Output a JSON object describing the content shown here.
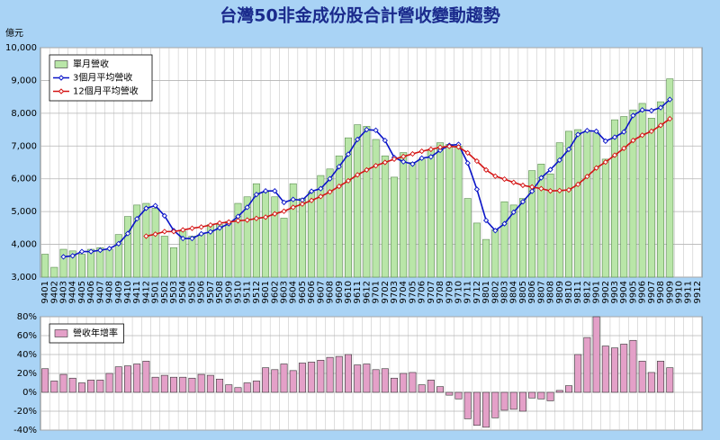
{
  "chart_data": [
    {
      "type": "bar_line",
      "title": "台灣50非金成份股合計營收變動趨勢",
      "y_label": "億元",
      "categories": [
        "9401",
        "9402",
        "9403",
        "9404",
        "9405",
        "9406",
        "9407",
        "9408",
        "9409",
        "9410",
        "9411",
        "9412",
        "9501",
        "9502",
        "9503",
        "9504",
        "9505",
        "9506",
        "9507",
        "9508",
        "9509",
        "9510",
        "9511",
        "9512",
        "9601",
        "9602",
        "9603",
        "9604",
        "9605",
        "9606",
        "9607",
        "9608",
        "9609",
        "9610",
        "9611",
        "9612",
        "9701",
        "9702",
        "9703",
        "9704",
        "9705",
        "9706",
        "9707",
        "9708",
        "9709",
        "9710",
        "9711",
        "9712",
        "9801",
        "9802",
        "9803",
        "9804",
        "9805",
        "9806",
        "9807",
        "9808",
        "9809",
        "9810",
        "9811",
        "9812",
        "9901",
        "9902",
        "9903",
        "9904",
        "9905",
        "9906",
        "9907",
        "9908",
        "9909",
        "9910",
        "9911",
        "9912"
      ],
      "series": [
        {
          "name": "單月營收",
          "kind": "bar",
          "color": "#b9e6a8",
          "values": [
            3700,
            3300,
            3850,
            3800,
            3700,
            3850,
            3900,
            3850,
            4300,
            4850,
            5200,
            5250,
            5100,
            4250,
            3900,
            4400,
            4250,
            4300,
            4600,
            4600,
            4700,
            5250,
            5450,
            5850,
            5600,
            5450,
            4800,
            5850,
            5400,
            5600,
            6100,
            6300,
            6700,
            7250,
            7650,
            7600,
            7200,
            6700,
            6050,
            6800,
            6500,
            6600,
            6900,
            7100,
            7050,
            7000,
            5400,
            4650,
            4150,
            4450,
            5300,
            5200,
            5400,
            6250,
            6450,
            6150,
            7100,
            7450,
            7500,
            7450,
            7400,
            6600,
            7800,
            7900,
            8100,
            8300,
            7850,
            8350,
            9050,
            null,
            null,
            null
          ]
        },
        {
          "name": "3個月平均營收",
          "kind": "line",
          "color": "#0a14c8",
          "values": [
            null,
            null,
            3620,
            3650,
            3780,
            3780,
            3820,
            3870,
            4020,
            4330,
            4780,
            5100,
            5180,
            4870,
            4420,
            4180,
            4180,
            4320,
            4380,
            4500,
            4630,
            4850,
            5130,
            5520,
            5630,
            5630,
            5280,
            5370,
            5350,
            5620,
            5700,
            6000,
            6370,
            6750,
            7200,
            7500,
            7480,
            7170,
            6650,
            6520,
            6450,
            6630,
            6670,
            6870,
            7020,
            7050,
            6480,
            5680,
            4730,
            4420,
            4630,
            4980,
            5300,
            5620,
            6030,
            6280,
            6570,
            6900,
            7350,
            7470,
            7450,
            7150,
            7270,
            7430,
            7930,
            8100,
            8080,
            8170,
            8420,
            null,
            null,
            null
          ]
        },
        {
          "name": "12個月平均營收",
          "kind": "line",
          "color": "#d41414",
          "values": [
            null,
            null,
            null,
            null,
            null,
            null,
            null,
            null,
            null,
            null,
            null,
            4250,
            4310,
            4390,
            4390,
            4440,
            4490,
            4530,
            4590,
            4650,
            4680,
            4720,
            4740,
            4790,
            4830,
            4930,
            5010,
            5130,
            5230,
            5340,
            5460,
            5600,
            5770,
            5940,
            6120,
            6270,
            6400,
            6500,
            6600,
            6680,
            6760,
            6840,
            6900,
            6960,
            6990,
            6970,
            6790,
            6540,
            6270,
            6080,
            5990,
            5890,
            5800,
            5750,
            5700,
            5630,
            5640,
            5660,
            5830,
            6070,
            6330,
            6510,
            6720,
            6930,
            7170,
            7330,
            7450,
            7630,
            7830,
            null,
            null,
            null
          ]
        }
      ],
      "ylim": [
        3000,
        10000
      ],
      "yticks": [
        {
          "value": 3000,
          "label": "3,000"
        },
        {
          "value": 4000,
          "label": "4,000"
        },
        {
          "value": 5000,
          "label": "5,000"
        },
        {
          "value": 6000,
          "label": "6,000"
        },
        {
          "value": 7000,
          "label": "7,000"
        },
        {
          "value": 8000,
          "label": "8,000"
        },
        {
          "value": 9000,
          "label": "9,000"
        },
        {
          "value": 10000,
          "label": "10,000"
        }
      ],
      "grid": true,
      "legend": "top-left"
    },
    {
      "type": "bar",
      "series": [
        {
          "name": "營收年增率",
          "kind": "bar",
          "color": "#e4a0c8",
          "values": [
            25,
            12,
            19,
            15,
            10,
            13,
            13,
            20,
            27,
            28,
            30,
            33,
            16,
            18,
            16,
            16,
            15,
            19,
            18,
            14,
            8,
            5,
            10,
            12,
            26,
            24,
            30,
            23,
            31,
            32,
            34,
            37,
            38,
            40,
            29,
            30,
            24,
            25,
            15,
            20,
            21,
            8,
            13,
            6,
            -3,
            -7,
            -28,
            -35,
            -37,
            -27,
            -19,
            -18,
            -20,
            -6,
            -7,
            -9,
            2,
            7,
            40,
            58,
            80,
            49,
            47,
            51,
            55,
            33,
            21,
            33,
            26,
            null,
            null,
            null
          ]
        }
      ],
      "ylim": [
        -40,
        80
      ],
      "yticks": [
        {
          "value": -40,
          "label": "-40%"
        },
        {
          "value": -20,
          "label": "-20%"
        },
        {
          "value": 0,
          "label": "0%"
        },
        {
          "value": 20,
          "label": "20%"
        },
        {
          "value": 40,
          "label": "40%"
        },
        {
          "value": 60,
          "label": "60%"
        },
        {
          "value": 80,
          "label": "80%"
        }
      ],
      "grid": true,
      "legend": "top-left"
    }
  ]
}
